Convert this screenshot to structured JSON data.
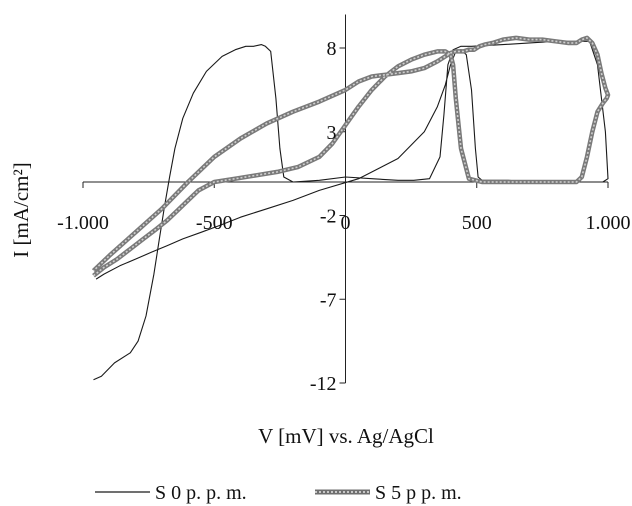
{
  "chart_data": {
    "type": "line",
    "title": "",
    "xlabel": "V [mV] vs. Ag/AgCl",
    "ylabel": "I [mA/cm²]",
    "xlim": [
      -1000,
      1000
    ],
    "ylim": [
      -12,
      10
    ],
    "x_ticks": [
      {
        "value": -1000,
        "label": "-1.000"
      },
      {
        "value": -500,
        "label": "-500"
      },
      {
        "value": 0,
        "label": "0"
      },
      {
        "value": 500,
        "label": "500"
      },
      {
        "value": 1000,
        "label": "1.000"
      }
    ],
    "y_ticks": [
      {
        "value": 8,
        "label": "8"
      },
      {
        "value": 3,
        "label": "3"
      },
      {
        "value": -2,
        "label": "-2"
      },
      {
        "value": -7,
        "label": "-7"
      },
      {
        "value": -12,
        "label": "-12"
      }
    ],
    "grid": false,
    "legend_position": "bottom",
    "series": [
      {
        "name": "S 0 p. p. m.",
        "color": "#1a1a1a",
        "style": "thin",
        "x": [
          -960,
          -930,
          -880,
          -820,
          -790,
          -760,
          -730,
          -710,
          -690,
          -670,
          -650,
          -620,
          -580,
          -530,
          -470,
          -420,
          -380,
          -350,
          -320,
          -305,
          -285,
          -265,
          -250,
          -235,
          -200,
          -100,
          0,
          100,
          200,
          260,
          320,
          360,
          375,
          390,
          410,
          440,
          480,
          600,
          800,
          930,
          960,
          990,
          1000,
          980,
          950,
          920,
          900,
          880,
          850,
          800,
          700,
          620,
          580,
          560,
          540,
          520,
          505,
          495,
          480,
          460,
          440,
          420,
          400,
          380,
          350,
          300,
          200,
          50,
          -100,
          -200,
          -300,
          -400,
          -480,
          -550,
          -620,
          -680,
          -740,
          -800,
          -860,
          -920,
          -950
        ],
        "y": [
          -11.8,
          -11.6,
          -10.8,
          -10.2,
          -9.5,
          -8.0,
          -5.5,
          -3.5,
          -1.5,
          0.3,
          2.0,
          3.8,
          5.3,
          6.6,
          7.5,
          7.9,
          8.1,
          8.1,
          8.2,
          8.1,
          7.8,
          5.0,
          2.0,
          0.3,
          0.0,
          0.1,
          0.3,
          0.2,
          0.1,
          0.1,
          0.2,
          1.5,
          4.0,
          7.0,
          7.9,
          8.1,
          8.1,
          8.2,
          8.4,
          8.4,
          7.0,
          3.0,
          0.2,
          0.0,
          0.0,
          0.0,
          0.0,
          0.0,
          0.0,
          0.0,
          0.0,
          0.1,
          0.1,
          0.1,
          0.1,
          0.1,
          0.3,
          2.0,
          5.5,
          7.6,
          7.9,
          7.8,
          7.0,
          5.8,
          4.5,
          3.0,
          1.4,
          0.2,
          -0.5,
          -1.1,
          -1.6,
          -2.1,
          -2.6,
          -3.0,
          -3.4,
          -3.8,
          -4.2,
          -4.6,
          -5.0,
          -5.5,
          -5.8
        ]
      },
      {
        "name": "S 5 p p. m.",
        "color": "#9a9a9a",
        "style": "thick",
        "x": [
          -960,
          -920,
          -870,
          -820,
          -770,
          -720,
          -680,
          -640,
          -600,
          -560,
          -500,
          -420,
          -340,
          -260,
          -180,
          -100,
          -50,
          0,
          50,
          100,
          150,
          200,
          250,
          300,
          350,
          380,
          400,
          410,
          420,
          440,
          470,
          520,
          600,
          700,
          800,
          880,
          900,
          920,
          940,
          960,
          980,
          995,
          1000,
          990,
          975,
          960,
          940,
          920,
          900,
          880,
          850,
          800,
          750,
          700,
          650,
          600,
          560,
          530,
          510,
          500,
          490,
          470,
          450,
          420,
          400,
          380,
          350,
          300,
          250,
          200,
          150,
          100,
          50,
          0,
          -100,
          -200,
          -300,
          -400,
          -500,
          -600,
          -700,
          -800,
          -900,
          -960
        ],
        "y": [
          -5.6,
          -5.1,
          -4.6,
          -4.0,
          -3.4,
          -2.8,
          -2.3,
          -1.7,
          -1.1,
          -0.5,
          0.0,
          0.2,
          0.4,
          0.6,
          0.9,
          1.5,
          2.3,
          3.4,
          4.5,
          5.5,
          6.3,
          6.9,
          7.3,
          7.6,
          7.8,
          7.8,
          7.6,
          7.0,
          5.0,
          2.0,
          0.2,
          0.0,
          0.0,
          0.0,
          0.0,
          0.0,
          0.3,
          1.5,
          3.0,
          4.2,
          4.7,
          5.0,
          5.2,
          5.6,
          6.5,
          7.6,
          8.3,
          8.6,
          8.5,
          8.3,
          8.3,
          8.4,
          8.5,
          8.5,
          8.6,
          8.5,
          8.3,
          8.2,
          8.1,
          8.0,
          7.9,
          7.9,
          7.8,
          7.8,
          7.7,
          7.5,
          7.2,
          6.8,
          6.6,
          6.5,
          6.4,
          6.3,
          6.0,
          5.5,
          4.8,
          4.2,
          3.5,
          2.6,
          1.5,
          0.0,
          -1.6,
          -3.0,
          -4.4,
          -5.3
        ]
      }
    ]
  }
}
